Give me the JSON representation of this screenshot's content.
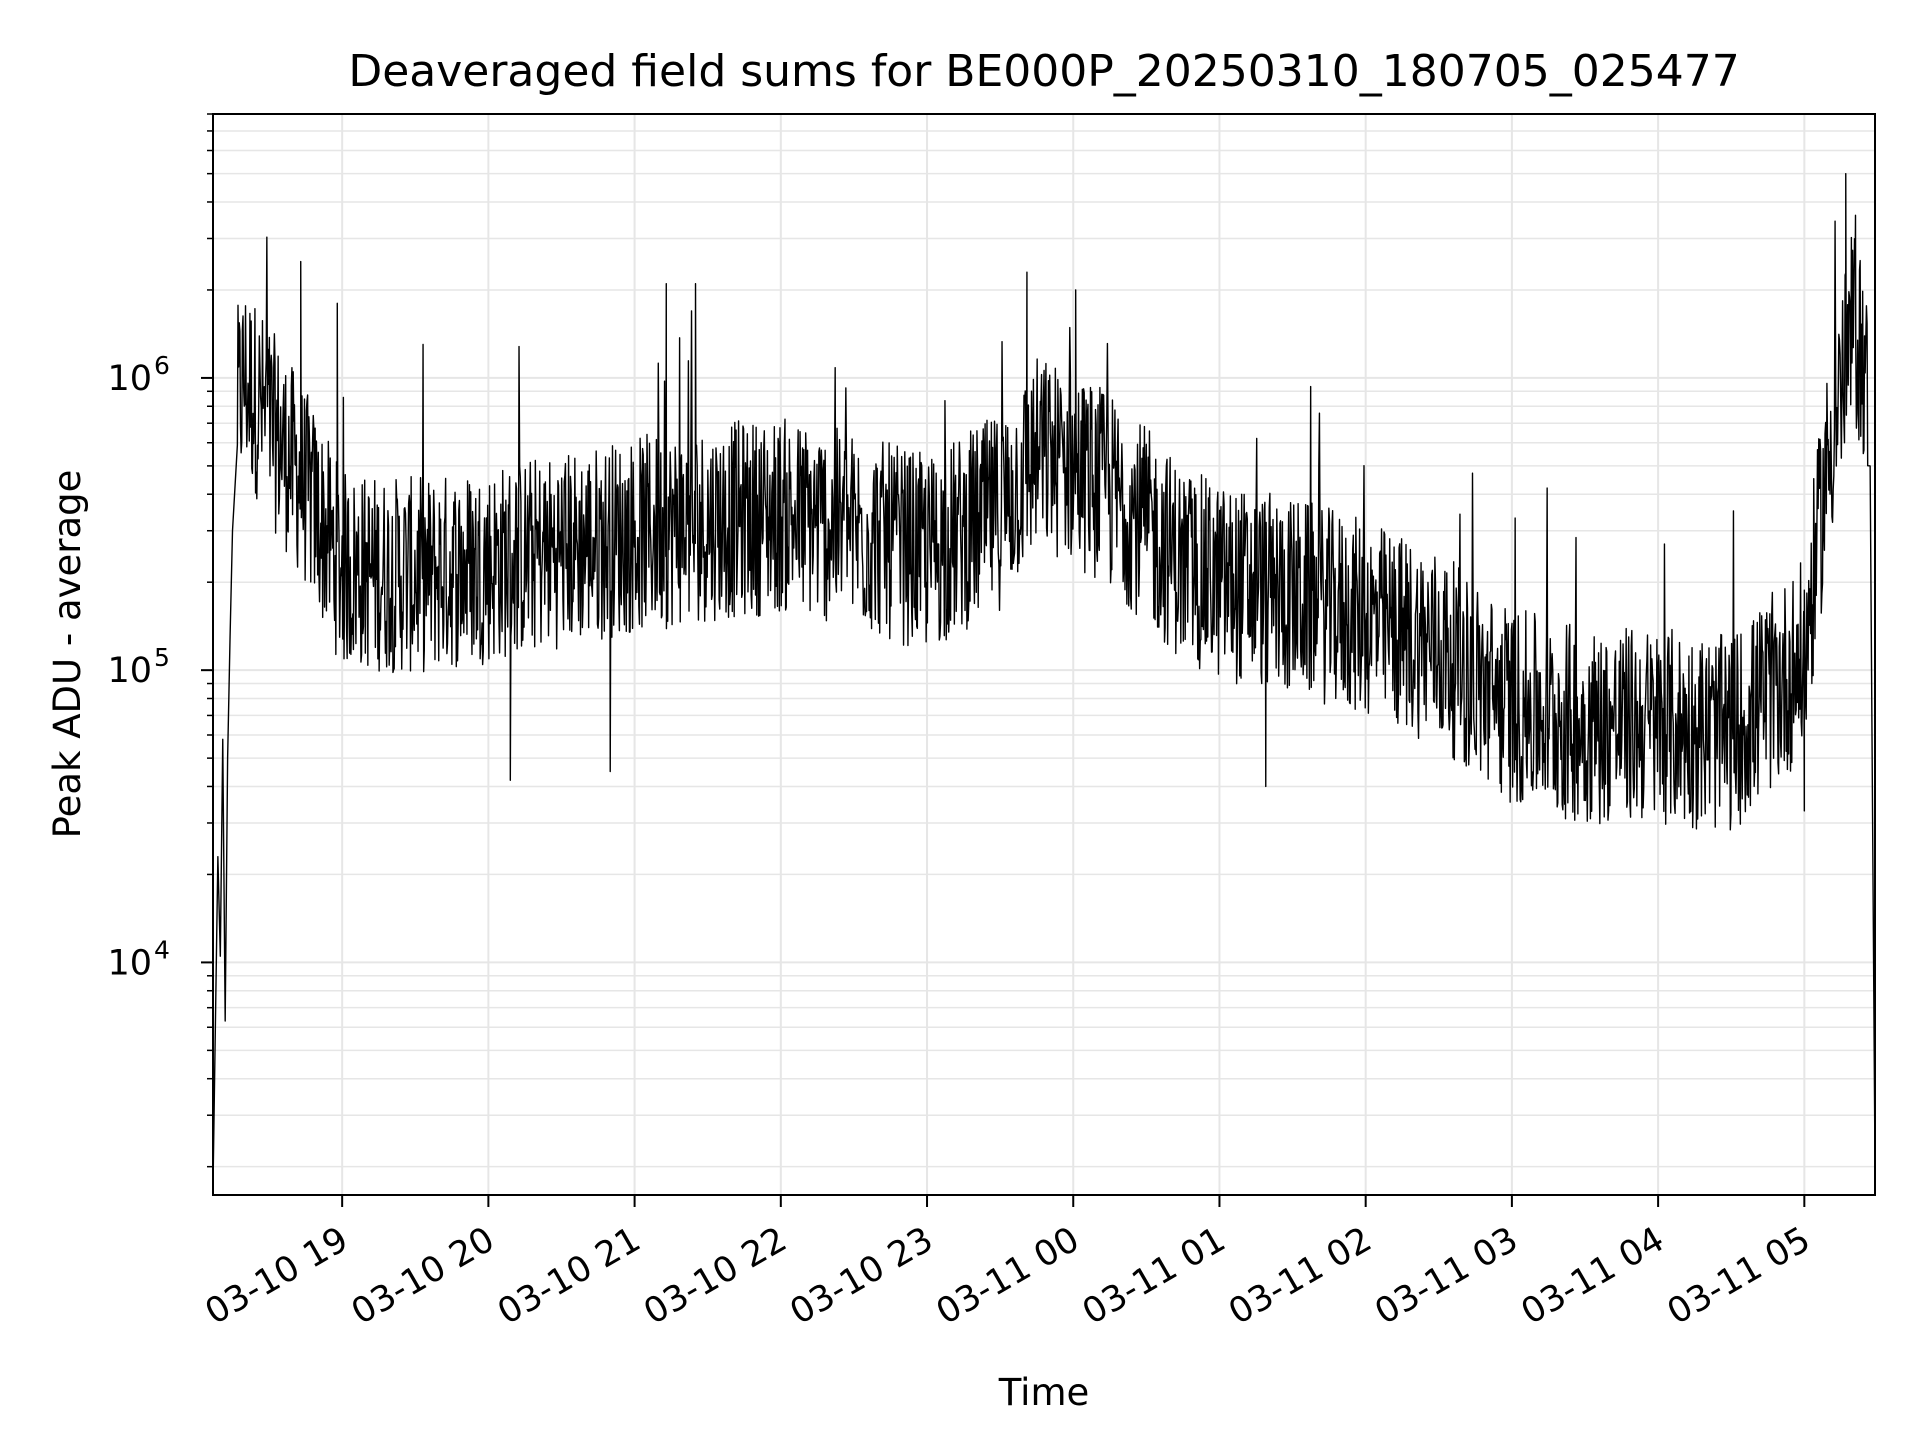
{
  "chart_data": {
    "type": "line",
    "title": "Deaveraged field sums for BE000P_20250310_180705_025477",
    "xlabel": "Time",
    "ylabel": "Peak ADU - average",
    "x_ticks": [
      "03-10 19",
      "03-10 20",
      "03-10 21",
      "03-10 22",
      "03-10 23",
      "03-11 00",
      "03-11 01",
      "03-11 02",
      "03-11 03",
      "03-11 04",
      "03-11 05"
    ],
    "x_tick_times": [
      "2025-03-10T19:00",
      "2025-03-10T20:00",
      "2025-03-10T21:00",
      "2025-03-10T22:00",
      "2025-03-10T23:00",
      "2025-03-11T00:00",
      "2025-03-11T01:00",
      "2025-03-11T02:00",
      "2025-03-11T03:00",
      "2025-03-11T04:00",
      "2025-03-11T05:00"
    ],
    "xlim": [
      "2025-03-10T18:07",
      "2025-03-11T05:29"
    ],
    "y_ticks": [
      {
        "value": 10000,
        "base": "10",
        "exp": "4"
      },
      {
        "value": 100000,
        "base": "10",
        "exp": "5"
      },
      {
        "value": 1000000,
        "base": "10",
        "exp": "6"
      }
    ],
    "yscale": "log",
    "ylim": [
      1600,
      8000000
    ],
    "grid": true,
    "line_color": "#000000",
    "grid_color": "#e6e6e6",
    "series": [
      {
        "points": [
          [
            "2025-03-10T18:07",
            1700
          ],
          [
            "2025-03-10T18:09",
            23000
          ],
          [
            "2025-03-10T18:10",
            10500
          ],
          [
            "2025-03-10T18:11",
            58000
          ],
          [
            "2025-03-10T18:12",
            6300
          ],
          [
            "2025-03-10T18:13",
            50000
          ],
          [
            "2025-03-10T18:14",
            130000
          ],
          [
            "2025-03-10T18:15",
            300000
          ],
          [
            "2025-03-10T18:17",
            800000
          ],
          [
            "2025-03-10T18:20",
            1000000
          ],
          [
            "2025-03-10T18:30",
            700000
          ],
          [
            "2025-03-10T18:45",
            420000
          ],
          [
            "2025-03-10T19:00",
            220000
          ],
          [
            "2025-03-10T19:30",
            210000
          ],
          [
            "2025-03-10T20:00",
            230000
          ],
          [
            "2025-03-10T20:30",
            260000
          ],
          [
            "2025-03-10T21:00",
            290000
          ],
          [
            "2025-03-10T21:30",
            320000
          ],
          [
            "2025-03-10T22:00",
            340000
          ],
          [
            "2025-03-10T22:30",
            300000
          ],
          [
            "2025-03-10T23:00",
            250000
          ],
          [
            "2025-03-10T23:30",
            350000
          ],
          [
            "2025-03-10T23:45",
            550000
          ],
          [
            "2025-03-11T00:00",
            500000
          ],
          [
            "2025-03-11T00:20",
            380000
          ],
          [
            "2025-03-11T00:45",
            230000
          ],
          [
            "2025-03-11T01:00",
            200000
          ],
          [
            "2025-03-11T01:30",
            180000
          ],
          [
            "2025-03-11T02:00",
            150000
          ],
          [
            "2025-03-11T02:30",
            120000
          ],
          [
            "2025-03-11T02:50",
            85000
          ],
          [
            "2025-03-11T03:00",
            75000
          ],
          [
            "2025-03-11T03:30",
            65000
          ],
          [
            "2025-03-11T04:00",
            65000
          ],
          [
            "2025-03-11T04:30",
            60000
          ],
          [
            "2025-03-11T05:00",
            110000
          ],
          [
            "2025-03-11T05:05",
            250000
          ],
          [
            "2025-03-11T05:10",
            550000
          ],
          [
            "2025-03-11T05:15",
            900000
          ],
          [
            "2025-03-11T05:20",
            1500000
          ],
          [
            "2025-03-11T05:25",
            1100000
          ],
          [
            "2025-03-11T05:27",
            500000
          ],
          [
            "2025-03-11T05:29",
            2000
          ]
        ],
        "peaks": [
          [
            "2025-03-10T18:43",
            2500000
          ],
          [
            "2025-03-10T18:58",
            1800000
          ],
          [
            "2025-03-10T21:13",
            2100000
          ],
          [
            "2025-03-10T21:25",
            2100000
          ],
          [
            "2025-03-10T23:41",
            2300000
          ],
          [
            "2025-03-11T00:01",
            2000000
          ],
          [
            "2025-03-11T05:17",
            5000000
          ],
          [
            "2025-03-11T05:21",
            3600000
          ]
        ],
        "dips": [
          [
            "2025-03-10T20:09",
            42000
          ],
          [
            "2025-03-10T20:50",
            45000
          ],
          [
            "2025-03-11T01:19",
            40000
          ],
          [
            "2025-03-11T03:22",
            31000
          ],
          [
            "2025-03-11T05:00",
            33000
          ]
        ]
      }
    ]
  }
}
